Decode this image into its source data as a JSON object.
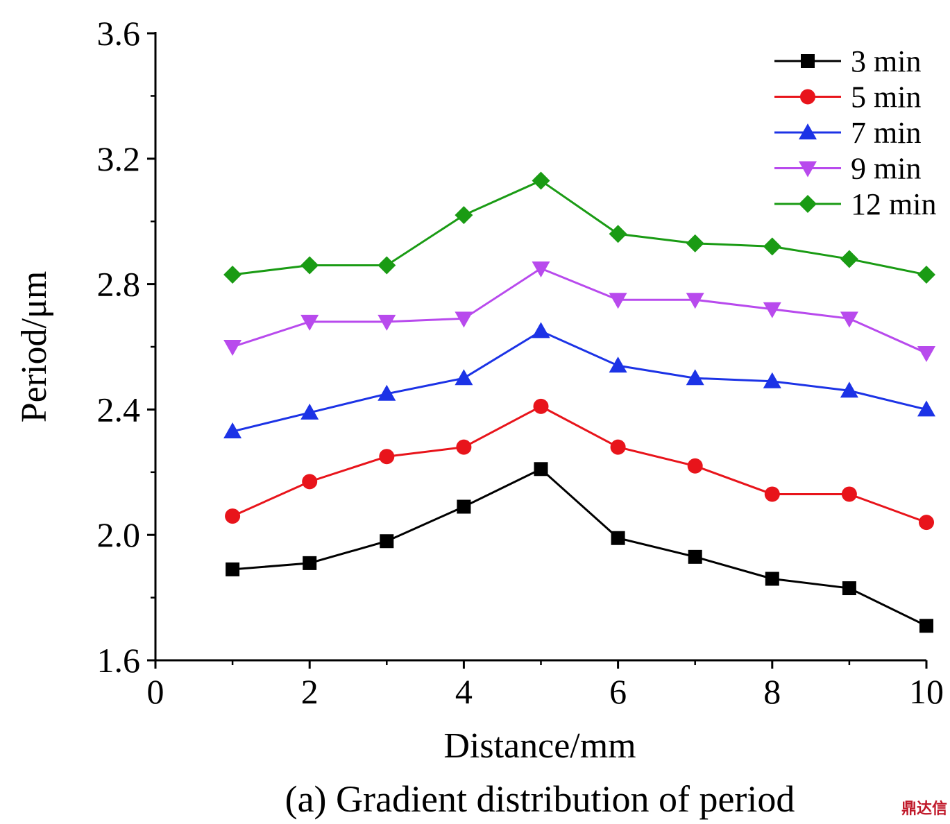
{
  "chart_data": {
    "type": "line",
    "caption": "(a) Gradient distribution of period",
    "xlabel": "Distance/mm",
    "ylabel": "Period/μm",
    "xlim": [
      0,
      10
    ],
    "ylim": [
      1.6,
      3.6
    ],
    "xticks": [
      0,
      2,
      4,
      6,
      8,
      10
    ],
    "xtick_labels": [
      "0",
      "2",
      "4",
      "6",
      "8",
      "10"
    ],
    "yticks": [
      1.6,
      2.0,
      2.4,
      2.8,
      3.2,
      3.6
    ],
    "ytick_labels": [
      "1.6",
      "2.0",
      "2.4",
      "2.8",
      "3.2",
      "3.6"
    ],
    "grid": false,
    "legend_position": "top-right",
    "x": [
      1,
      2,
      3,
      4,
      5,
      6,
      7,
      8,
      9,
      10
    ],
    "series": [
      {
        "name": "3 min",
        "color": "#000000",
        "marker": "square",
        "values": [
          1.89,
          1.91,
          1.98,
          2.09,
          2.21,
          1.99,
          1.93,
          1.86,
          1.83,
          1.71
        ]
      },
      {
        "name": "5 min",
        "color": "#e8141b",
        "marker": "circle",
        "values": [
          2.06,
          2.17,
          2.25,
          2.28,
          2.41,
          2.28,
          2.22,
          2.13,
          2.13,
          2.04
        ]
      },
      {
        "name": "7 min",
        "color": "#1c33e6",
        "marker": "triangle-up",
        "values": [
          2.33,
          2.39,
          2.45,
          2.5,
          2.65,
          2.54,
          2.5,
          2.49,
          2.46,
          2.4
        ]
      },
      {
        "name": "9 min",
        "color": "#b84aed",
        "marker": "triangle-down",
        "values": [
          2.6,
          2.68,
          2.68,
          2.69,
          2.85,
          2.75,
          2.75,
          2.72,
          2.69,
          2.58
        ]
      },
      {
        "name": "12 min",
        "color": "#1a9b14",
        "marker": "diamond",
        "values": [
          2.83,
          2.86,
          2.86,
          3.02,
          3.13,
          2.96,
          2.93,
          2.92,
          2.88,
          2.83
        ]
      }
    ]
  },
  "watermark": "鼎达信"
}
